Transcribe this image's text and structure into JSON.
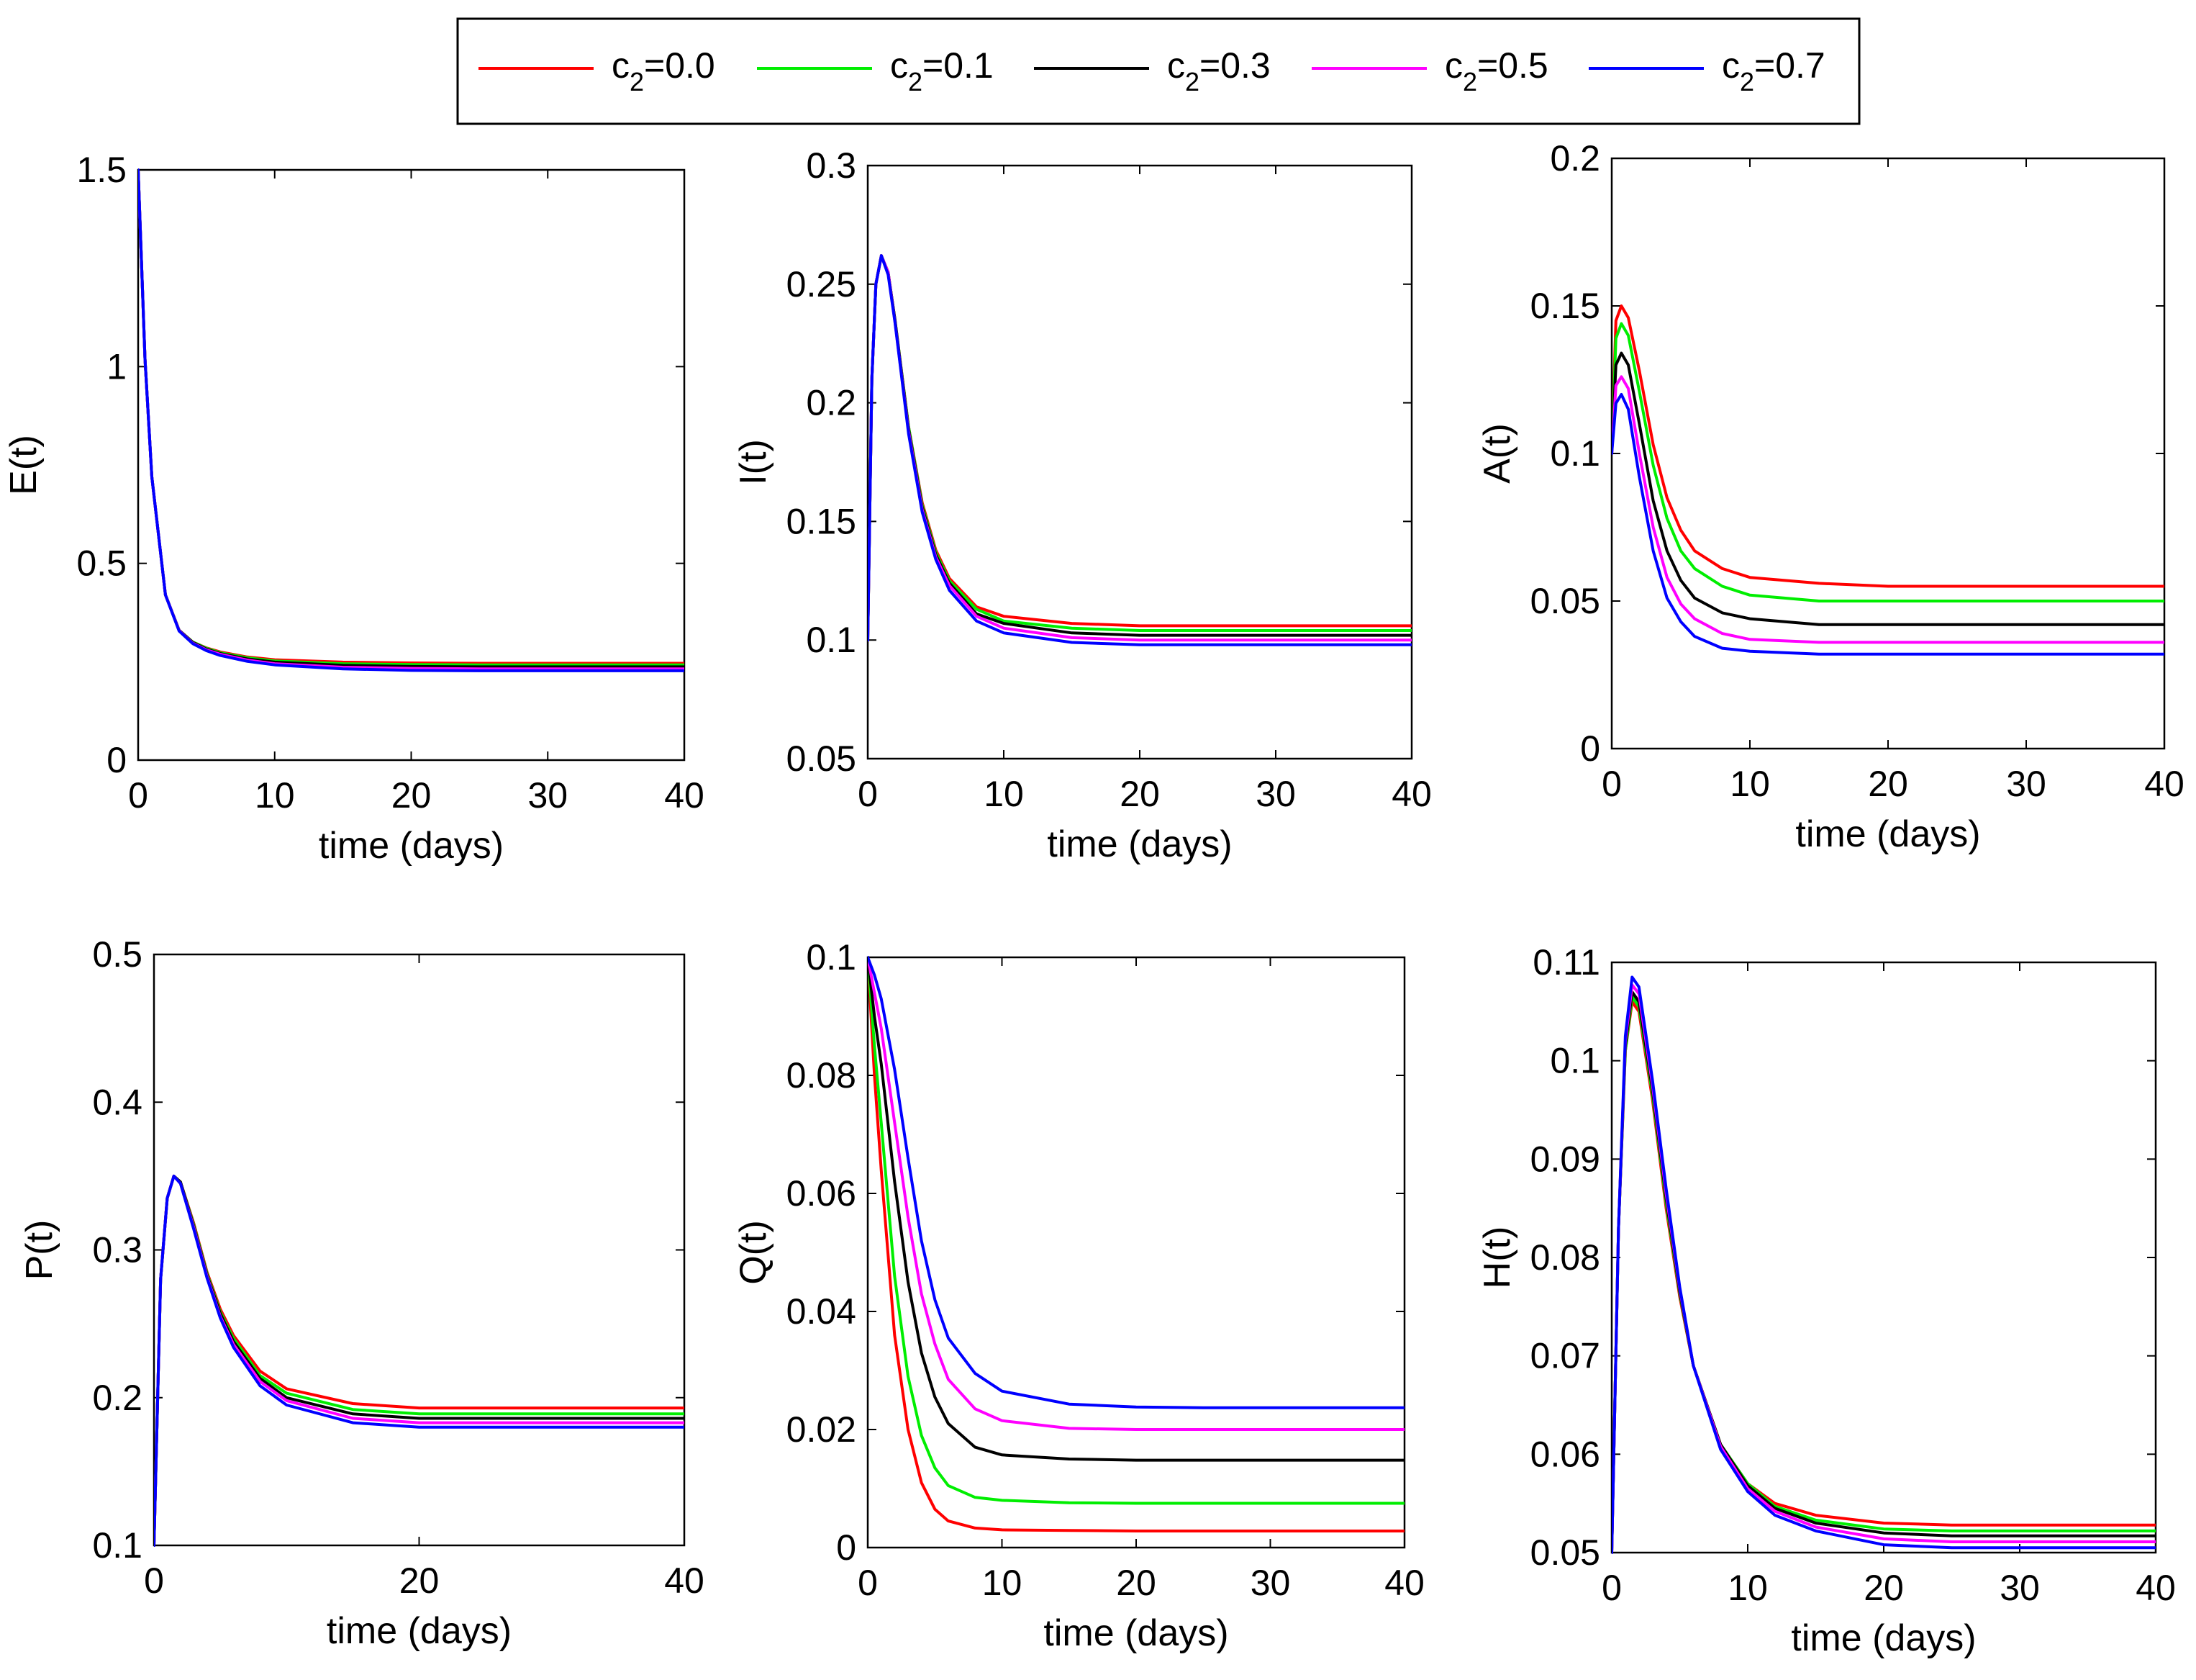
{
  "chart_data": {
    "type": "line",
    "series_names": [
      "c2=0.0",
      "c2=0.1",
      "c2=0.3",
      "c2=0.5",
      "c2=0.7"
    ],
    "legend": {
      "placement": "top-center",
      "entries": [
        {
          "base": "c",
          "sub": "2",
          "rest": "=0.0",
          "color": "#ff0000"
        },
        {
          "base": "c",
          "sub": "2",
          "rest": "=0.1",
          "color": "#00ee00"
        },
        {
          "base": "c",
          "sub": "2",
          "rest": "=0.3",
          "color": "#000000"
        },
        {
          "base": "c",
          "sub": "2",
          "rest": "=0.5",
          "color": "#ff00ff"
        },
        {
          "base": "c",
          "sub": "2",
          "rest": "=0.7",
          "color": "#0000ff"
        }
      ]
    },
    "panels": [
      {
        "ylabel": "E(t)",
        "xlabel": "time (days)",
        "xlim": [
          0,
          40
        ],
        "ylim": [
          0,
          1.5
        ],
        "xticks": [
          "0",
          "10",
          "20",
          "30",
          "40"
        ],
        "yticks": [
          "0",
          "0.5",
          "1",
          "1.5"
        ],
        "x": [
          0,
          0.5,
          1,
          2,
          3,
          4,
          5,
          6,
          8,
          10,
          15,
          20,
          25,
          30,
          35,
          40
        ],
        "series": [
          {
            "name": "c2=0.0",
            "color": "#ff0000",
            "values": [
              1.5,
              1.02,
              0.72,
              0.42,
              0.33,
              0.3,
              0.285,
              0.275,
              0.262,
              0.255,
              0.249,
              0.247,
              0.246,
              0.246,
              0.246,
              0.246
            ]
          },
          {
            "name": "c2=0.1",
            "color": "#00ee00",
            "values": [
              1.5,
              1.02,
              0.72,
              0.42,
              0.33,
              0.3,
              0.284,
              0.273,
              0.26,
              0.252,
              0.245,
              0.243,
              0.242,
              0.242,
              0.242,
              0.242
            ]
          },
          {
            "name": "c2=0.3",
            "color": "#000000",
            "values": [
              1.5,
              1.02,
              0.72,
              0.42,
              0.33,
              0.299,
              0.282,
              0.271,
              0.257,
              0.249,
              0.241,
              0.238,
              0.237,
              0.237,
              0.237,
              0.237
            ]
          },
          {
            "name": "c2=0.5",
            "color": "#ff00ff",
            "values": [
              1.5,
              1.02,
              0.72,
              0.42,
              0.329,
              0.297,
              0.28,
              0.269,
              0.254,
              0.245,
              0.236,
              0.233,
              0.232,
              0.232,
              0.232,
              0.232
            ]
          },
          {
            "name": "c2=0.7",
            "color": "#0000ff",
            "values": [
              1.5,
              1.02,
              0.72,
              0.42,
              0.328,
              0.296,
              0.278,
              0.266,
              0.251,
              0.242,
              0.232,
              0.228,
              0.227,
              0.227,
              0.227,
              0.227
            ]
          }
        ]
      },
      {
        "ylabel": "I(t)",
        "xlabel": "time (days)",
        "xlim": [
          0,
          40
        ],
        "ylim": [
          0.05,
          0.3
        ],
        "xticks": [
          "0",
          "10",
          "20",
          "30",
          "40"
        ],
        "yticks": [
          "0.05",
          "0.1",
          "0.15",
          "0.2",
          "0.25",
          "0.3"
        ],
        "x": [
          0,
          0.3,
          0.6,
          1,
          1.5,
          2,
          3,
          4,
          5,
          6,
          8,
          10,
          15,
          20,
          25,
          30,
          35,
          40
        ],
        "series": [
          {
            "name": "c2=0.0",
            "color": "#ff0000",
            "values": [
              0.1,
              0.21,
              0.25,
              0.262,
              0.255,
              0.235,
              0.19,
              0.158,
              0.138,
              0.126,
              0.114,
              0.11,
              0.107,
              0.106,
              0.106,
              0.106,
              0.106,
              0.106
            ]
          },
          {
            "name": "c2=0.1",
            "color": "#00ee00",
            "values": [
              0.1,
              0.21,
              0.25,
              0.262,
              0.255,
              0.235,
              0.19,
              0.157,
              0.137,
              0.125,
              0.113,
              0.108,
              0.105,
              0.104,
              0.104,
              0.104,
              0.104,
              0.104
            ]
          },
          {
            "name": "c2=0.3",
            "color": "#000000",
            "values": [
              0.1,
              0.21,
              0.25,
              0.262,
              0.255,
              0.235,
              0.189,
              0.156,
              0.136,
              0.124,
              0.111,
              0.107,
              0.103,
              0.102,
              0.102,
              0.102,
              0.102,
              0.102
            ]
          },
          {
            "name": "c2=0.5",
            "color": "#ff00ff",
            "values": [
              0.1,
              0.21,
              0.25,
              0.262,
              0.255,
              0.234,
              0.188,
              0.155,
              0.135,
              0.123,
              0.11,
              0.105,
              0.101,
              0.1,
              0.1,
              0.1,
              0.1,
              0.1
            ]
          },
          {
            "name": "c2=0.7",
            "color": "#0000ff",
            "values": [
              0.1,
              0.21,
              0.25,
              0.262,
              0.254,
              0.234,
              0.187,
              0.154,
              0.134,
              0.121,
              0.108,
              0.103,
              0.099,
              0.098,
              0.098,
              0.098,
              0.098,
              0.098
            ]
          }
        ]
      },
      {
        "ylabel": "A(t)",
        "xlabel": "time (days)",
        "xlim": [
          0,
          40
        ],
        "ylim": [
          0,
          0.2
        ],
        "xticks": [
          "0",
          "10",
          "20",
          "30",
          "40"
        ],
        "yticks": [
          "0",
          "0.05",
          "0.1",
          "0.15",
          "0.2"
        ],
        "x": [
          0,
          0.3,
          0.7,
          1.2,
          2,
          3,
          4,
          5,
          6,
          8,
          10,
          15,
          20,
          25,
          30,
          35,
          40
        ],
        "series": [
          {
            "name": "c2=0.0",
            "color": "#ff0000",
            "values": [
              0.1,
              0.145,
              0.15,
              0.146,
              0.128,
              0.103,
              0.085,
              0.074,
              0.067,
              0.061,
              0.058,
              0.056,
              0.055,
              0.055,
              0.055,
              0.055,
              0.055
            ]
          },
          {
            "name": "c2=0.1",
            "color": "#00ee00",
            "values": [
              0.1,
              0.139,
              0.144,
              0.14,
              0.121,
              0.096,
              0.078,
              0.067,
              0.061,
              0.055,
              0.052,
              0.05,
              0.05,
              0.05,
              0.05,
              0.05,
              0.05
            ]
          },
          {
            "name": "c2=0.3",
            "color": "#000000",
            "values": [
              0.1,
              0.13,
              0.134,
              0.13,
              0.11,
              0.084,
              0.067,
              0.057,
              0.051,
              0.046,
              0.044,
              0.042,
              0.042,
              0.042,
              0.042,
              0.042,
              0.042
            ]
          },
          {
            "name": "c2=0.5",
            "color": "#ff00ff",
            "values": [
              0.1,
              0.123,
              0.126,
              0.122,
              0.1,
              0.075,
              0.058,
              0.049,
              0.044,
              0.039,
              0.037,
              0.036,
              0.036,
              0.036,
              0.036,
              0.036,
              0.036
            ]
          },
          {
            "name": "c2=0.7",
            "color": "#0000ff",
            "values": [
              0.1,
              0.117,
              0.12,
              0.115,
              0.092,
              0.067,
              0.051,
              0.043,
              0.038,
              0.034,
              0.033,
              0.032,
              0.032,
              0.032,
              0.032,
              0.032,
              0.032
            ]
          }
        ]
      },
      {
        "ylabel": "P(t)",
        "xlabel": "time (days)",
        "xlim": [
          0,
          40
        ],
        "ylim": [
          0.1,
          0.5
        ],
        "xticks": [
          "0",
          "20",
          "40"
        ],
        "yticks": [
          "0.1",
          "0.2",
          "0.3",
          "0.4",
          "0.5"
        ],
        "x": [
          0,
          0.5,
          1,
          1.5,
          2,
          3,
          4,
          5,
          6,
          8,
          10,
          15,
          20,
          25,
          30,
          35,
          40
        ],
        "series": [
          {
            "name": "c2=0.0",
            "color": "#ff0000",
            "values": [
              0.1,
              0.28,
              0.335,
              0.35,
              0.346,
              0.318,
              0.285,
              0.26,
              0.242,
              0.218,
              0.206,
              0.196,
              0.193,
              0.193,
              0.193,
              0.193,
              0.193
            ]
          },
          {
            "name": "c2=0.1",
            "color": "#00ee00",
            "values": [
              0.1,
              0.28,
              0.335,
              0.35,
              0.346,
              0.317,
              0.284,
              0.258,
              0.24,
              0.215,
              0.203,
              0.192,
              0.189,
              0.189,
              0.189,
              0.189,
              0.189
            ]
          },
          {
            "name": "c2=0.3",
            "color": "#000000",
            "values": [
              0.1,
              0.28,
              0.335,
              0.35,
              0.346,
              0.316,
              0.283,
              0.257,
              0.238,
              0.213,
              0.2,
              0.189,
              0.186,
              0.186,
              0.186,
              0.186,
              0.186
            ]
          },
          {
            "name": "c2=0.5",
            "color": "#ff00ff",
            "values": [
              0.1,
              0.28,
              0.335,
              0.35,
              0.345,
              0.315,
              0.282,
              0.255,
              0.236,
              0.211,
              0.198,
              0.186,
              0.183,
              0.183,
              0.183,
              0.183,
              0.183
            ]
          },
          {
            "name": "c2=0.7",
            "color": "#0000ff",
            "values": [
              0.1,
              0.28,
              0.335,
              0.35,
              0.345,
              0.314,
              0.281,
              0.254,
              0.234,
              0.208,
              0.195,
              0.183,
              0.18,
              0.18,
              0.18,
              0.18,
              0.18
            ]
          }
        ]
      },
      {
        "ylabel": "Q(t)",
        "xlabel": "time (days)",
        "xlim": [
          0,
          40
        ],
        "ylim": [
          0,
          0.1
        ],
        "xticks": [
          "0",
          "10",
          "20",
          "30",
          "40"
        ],
        "yticks": [
          "0",
          "0.02",
          "0.04",
          "0.06",
          "0.08",
          "0.1"
        ],
        "x": [
          0,
          0.5,
          1,
          2,
          3,
          4,
          5,
          6,
          8,
          10,
          15,
          20,
          25,
          30,
          35,
          40
        ],
        "series": [
          {
            "name": "c2=0.0",
            "color": "#ff0000",
            "values": [
              0.1,
              0.08,
              0.064,
              0.036,
              0.02,
              0.011,
              0.0065,
              0.0045,
              0.0033,
              0.003,
              0.0029,
              0.0028,
              0.0028,
              0.0028,
              0.0028,
              0.0028
            ]
          },
          {
            "name": "c2=0.1",
            "color": "#00ee00",
            "values": [
              0.1,
              0.085,
              0.072,
              0.046,
              0.029,
              0.019,
              0.0135,
              0.0105,
              0.0085,
              0.008,
              0.0076,
              0.0075,
              0.0075,
              0.0075,
              0.0075,
              0.0075
            ]
          },
          {
            "name": "c2=0.3",
            "color": "#000000",
            "values": [
              0.1,
              0.09,
              0.082,
              0.062,
              0.045,
              0.033,
              0.0255,
              0.021,
              0.017,
              0.0157,
              0.015,
              0.0148,
              0.0148,
              0.0148,
              0.0148,
              0.0148
            ]
          },
          {
            "name": "c2=0.5",
            "color": "#ff00ff",
            "values": [
              0.1,
              0.094,
              0.088,
              0.072,
              0.056,
              0.043,
              0.0345,
              0.0285,
              0.0235,
              0.0215,
              0.0202,
              0.02,
              0.02,
              0.02,
              0.02,
              0.02
            ]
          },
          {
            "name": "c2=0.7",
            "color": "#0000ff",
            "values": [
              0.1,
              0.097,
              0.093,
              0.081,
              0.066,
              0.052,
              0.042,
              0.0355,
              0.0295,
              0.0265,
              0.0243,
              0.0238,
              0.0237,
              0.0237,
              0.0237,
              0.0237
            ]
          }
        ]
      },
      {
        "ylabel": "H(t)",
        "xlabel": "time (days)",
        "xlim": [
          0,
          40
        ],
        "ylim": [
          0.05,
          0.11
        ],
        "xticks": [
          "0",
          "10",
          "20",
          "30",
          "40"
        ],
        "yticks": [
          "0.05",
          "0.06",
          "0.07",
          "0.08",
          "0.09",
          "0.1",
          "0.11"
        ],
        "x": [
          0,
          0.5,
          1,
          1.5,
          2,
          3,
          4,
          5,
          6,
          8,
          10,
          12,
          15,
          20,
          25,
          30,
          35,
          40
        ],
        "series": [
          {
            "name": "c2=0.0",
            "color": "#ff0000",
            "values": [
              0.05,
              0.083,
              0.101,
              0.106,
              0.105,
              0.096,
              0.085,
              0.076,
              0.069,
              0.061,
              0.057,
              0.055,
              0.0538,
              0.053,
              0.0528,
              0.0528,
              0.0528,
              0.0528
            ]
          },
          {
            "name": "c2=0.1",
            "color": "#00ee00",
            "values": [
              0.05,
              0.083,
              0.101,
              0.1065,
              0.1055,
              0.0965,
              0.0855,
              0.0763,
              0.069,
              0.061,
              0.057,
              0.0547,
              0.0533,
              0.0524,
              0.0522,
              0.0522,
              0.0522,
              0.0522
            ]
          },
          {
            "name": "c2=0.3",
            "color": "#000000",
            "values": [
              0.05,
              0.083,
              0.1015,
              0.107,
              0.106,
              0.097,
              0.086,
              0.0765,
              0.069,
              0.061,
              0.0568,
              0.0545,
              0.053,
              0.052,
              0.0517,
              0.0517,
              0.0517,
              0.0517
            ]
          },
          {
            "name": "c2=0.5",
            "color": "#ff00ff",
            "values": [
              0.05,
              0.083,
              0.102,
              0.1077,
              0.1068,
              0.0975,
              0.0865,
              0.0768,
              0.069,
              0.0608,
              0.0565,
              0.0542,
              0.0526,
              0.0514,
              0.0511,
              0.0511,
              0.0511,
              0.0511
            ]
          },
          {
            "name": "c2=0.7",
            "color": "#0000ff",
            "values": [
              0.05,
              0.083,
              0.1025,
              0.1085,
              0.1075,
              0.098,
              0.087,
              0.077,
              0.069,
              0.0605,
              0.0562,
              0.0538,
              0.0522,
              0.0508,
              0.0505,
              0.0505,
              0.0505,
              0.0505
            ]
          }
        ]
      }
    ]
  }
}
